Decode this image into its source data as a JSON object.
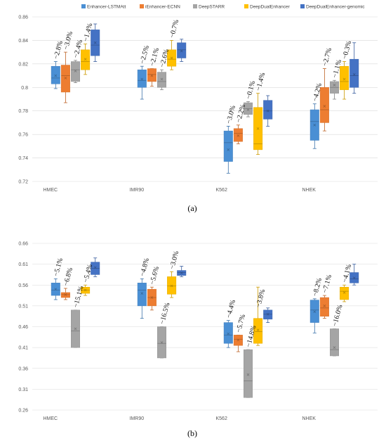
{
  "legend": [
    {
      "name": "Enhancer-LSTMAtt",
      "color": "#4a8fd4"
    },
    {
      "name": "iEnhancer-ECNN",
      "color": "#ed7d31"
    },
    {
      "name": "DeepSTARR",
      "color": "#a5a5a5"
    },
    {
      "name": "DeepDualEnhancer",
      "color": "#ffc000"
    },
    {
      "name": "DeepDualEnhancer-genomic",
      "color": "#4472c4"
    }
  ],
  "panels": [
    {
      "label": "(a)"
    },
    {
      "label": "(b)"
    }
  ],
  "chart_data": [
    {
      "type": "box",
      "title": "",
      "xlabel": "",
      "ylabel": "",
      "categories": [
        "HMEC",
        "IMR90",
        "K562",
        "NHEK"
      ],
      "ylim": [
        0.72,
        0.86
      ],
      "yticks": [
        "0.72",
        "0.74",
        "0.76",
        "0.78",
        "0.8",
        "0.82",
        "0.84",
        "0.86"
      ],
      "grid": true,
      "legend": "top",
      "series": [
        {
          "name": "Enhancer-LSTMAtt",
          "color": "#4a8fd4",
          "boxes": [
            {
              "min": 0.799,
              "q1": 0.803,
              "median": 0.808,
              "q3": 0.818,
              "max": 0.822,
              "mean": 0.81
            },
            {
              "min": 0.79,
              "q1": 0.8,
              "median": 0.806,
              "q3": 0.815,
              "max": 0.818,
              "mean": 0.807
            },
            {
              "min": 0.727,
              "q1": 0.737,
              "median": 0.753,
              "q3": 0.763,
              "max": 0.767,
              "mean": 0.747
            },
            {
              "min": 0.748,
              "q1": 0.755,
              "median": 0.771,
              "q3": 0.781,
              "max": 0.786,
              "mean": 0.768
            }
          ]
        },
        {
          "name": "iEnhancer-ECNN",
          "color": "#ed7d31",
          "boxes": [
            {
              "min": 0.787,
              "q1": 0.796,
              "median": 0.81,
              "q3": 0.819,
              "max": 0.83,
              "mean": 0.808
            },
            {
              "min": 0.801,
              "q1": 0.805,
              "median": 0.811,
              "q3": 0.816,
              "max": 0.816,
              "mean": 0.81
            },
            {
              "min": 0.752,
              "q1": 0.754,
              "median": 0.761,
              "q3": 0.765,
              "max": 0.768,
              "mean": 0.759
            },
            {
              "min": 0.763,
              "q1": 0.77,
              "median": 0.781,
              "q3": 0.8,
              "max": 0.816,
              "mean": 0.784
            }
          ]
        },
        {
          "name": "DeepSTARR",
          "color": "#a5a5a5",
          "boxes": [
            {
              "min": 0.804,
              "q1": 0.805,
              "median": 0.815,
              "q3": 0.822,
              "max": 0.823,
              "mean": 0.814
            },
            {
              "min": 0.798,
              "q1": 0.8,
              "median": 0.805,
              "q3": 0.813,
              "max": 0.815,
              "mean": 0.807
            },
            {
              "min": 0.775,
              "q1": 0.777,
              "median": 0.782,
              "q3": 0.787,
              "max": 0.788,
              "mean": 0.781
            },
            {
              "min": 0.79,
              "q1": 0.795,
              "median": 0.8,
              "q3": 0.805,
              "max": 0.806,
              "mean": 0.802
            }
          ]
        },
        {
          "name": "DeepDualEnhancer",
          "color": "#ffc000",
          "boxes": [
            {
              "min": 0.811,
              "q1": 0.815,
              "median": 0.822,
              "q3": 0.832,
              "max": 0.837,
              "mean": 0.824
            },
            {
              "min": 0.815,
              "q1": 0.818,
              "median": 0.824,
              "q3": 0.832,
              "max": 0.84,
              "mean": 0.825
            },
            {
              "min": 0.743,
              "q1": 0.747,
              "median": 0.752,
              "q3": 0.783,
              "max": 0.795,
              "mean": 0.765
            },
            {
              "min": 0.79,
              "q1": 0.798,
              "median": 0.805,
              "q3": 0.818,
              "max": 0.822,
              "mean": 0.807
            }
          ]
        },
        {
          "name": "DeepDualEnhancer-genomic",
          "color": "#4472c4",
          "boxes": [
            {
              "min": 0.822,
              "q1": 0.827,
              "median": 0.836,
              "q3": 0.849,
              "max": 0.854,
              "mean": 0.838
            },
            {
              "min": 0.822,
              "q1": 0.825,
              "median": 0.832,
              "q3": 0.838,
              "max": 0.841,
              "mean": 0.831
            },
            {
              "min": 0.767,
              "q1": 0.773,
              "median": 0.78,
              "q3": 0.789,
              "max": 0.793,
              "mean": 0.78
            },
            {
              "min": 0.795,
              "q1": 0.8,
              "median": 0.81,
              "q3": 0.824,
              "max": 0.838,
              "mean": 0.811
            }
          ]
        }
      ],
      "annotations": [
        {
          "category": "HMEC",
          "series": "Enhancer-LSTMAtt",
          "text": "−2.8%",
          "y": 0.822
        },
        {
          "category": "HMEC",
          "series": "iEnhancer-ECNN",
          "text": "−3.0%",
          "y": 0.83
        },
        {
          "category": "HMEC",
          "series": "DeepSTARR",
          "text": "−2.4%",
          "y": 0.823
        },
        {
          "category": "HMEC",
          "series": "DeepDualEnhancer",
          "text": "−1.4%",
          "y": 0.837
        },
        {
          "category": "IMR90",
          "series": "Enhancer-LSTMAtt",
          "text": "−2.5%",
          "y": 0.818
        },
        {
          "category": "IMR90",
          "series": "iEnhancer-ECNN",
          "text": "−2.1%",
          "y": 0.816
        },
        {
          "category": "IMR90",
          "series": "DeepSTARR",
          "text": "−2.6%",
          "y": 0.815
        },
        {
          "category": "IMR90",
          "series": "DeepDualEnhancer",
          "text": "−0.7%",
          "y": 0.84
        },
        {
          "category": "K562",
          "series": "Enhancer-LSTMAtt",
          "text": "−3.0%",
          "y": 0.767
        },
        {
          "category": "K562",
          "series": "iEnhancer-ECNN",
          "text": "−2.2%",
          "y": 0.768
        },
        {
          "category": "K562",
          "series": "DeepSTARR",
          "text": "−0.1%",
          "y": 0.788
        },
        {
          "category": "K562",
          "series": "DeepDualEnhancer",
          "text": "−1.4%",
          "y": 0.795
        },
        {
          "category": "NHEK",
          "series": "Enhancer-LSTMAtt",
          "text": "−4.2%",
          "y": 0.786
        },
        {
          "category": "NHEK",
          "series": "iEnhancer-ECNN",
          "text": "−2.7%",
          "y": 0.816
        },
        {
          "category": "NHEK",
          "series": "DeepSTARR",
          "text": "−1.1%",
          "y": 0.806
        },
        {
          "category": "NHEK",
          "series": "DeepDualEnhancer",
          "text": "−0.3%",
          "y": 0.822
        }
      ]
    },
    {
      "type": "box",
      "title": "",
      "xlabel": "",
      "ylabel": "",
      "categories": [
        "HMEC",
        "IMR90",
        "K562",
        "NHEK"
      ],
      "ylim": [
        0.26,
        0.66
      ],
      "yticks": [
        "0.26",
        "0.31",
        "0.36",
        "0.41",
        "0.46",
        "0.51",
        "0.56",
        "0.61",
        "0.66"
      ],
      "grid": true,
      "legend": "none",
      "series": [
        {
          "name": "Enhancer-LSTMAtt",
          "color": "#4a8fd4",
          "boxes": [
            {
              "min": 0.525,
              "q1": 0.535,
              "median": 0.548,
              "q3": 0.565,
              "max": 0.575,
              "mean": 0.55
            },
            {
              "min": 0.48,
              "q1": 0.51,
              "median": 0.548,
              "q3": 0.565,
              "max": 0.575,
              "mean": 0.54
            },
            {
              "min": 0.41,
              "q1": 0.42,
              "median": 0.44,
              "q3": 0.47,
              "max": 0.475,
              "mean": 0.443
            },
            {
              "min": 0.445,
              "q1": 0.47,
              "median": 0.5,
              "q3": 0.524,
              "max": 0.527,
              "mean": 0.496
            }
          ]
        },
        {
          "name": "iEnhancer-ECNN",
          "color": "#ed7d31",
          "boxes": [
            {
              "min": 0.525,
              "q1": 0.53,
              "median": 0.537,
              "q3": 0.542,
              "max": 0.552,
              "mean": 0.537
            },
            {
              "min": 0.5,
              "q1": 0.51,
              "median": 0.53,
              "q3": 0.55,
              "max": 0.555,
              "mean": 0.53
            },
            {
              "min": 0.4,
              "q1": 0.415,
              "median": 0.43,
              "q3": 0.44,
              "max": 0.44,
              "mean": 0.428
            },
            {
              "min": 0.48,
              "q1": 0.485,
              "median": 0.505,
              "q3": 0.53,
              "max": 0.535,
              "mean": 0.51
            }
          ]
        },
        {
          "name": "DeepSTARR",
          "color": "#a5a5a5",
          "boxes": [
            {
              "min": 0.41,
              "q1": 0.41,
              "median": 0.45,
              "q3": 0.5,
              "max": 0.5,
              "mean": 0.455
            },
            {
              "min": 0.385,
              "q1": 0.385,
              "median": 0.42,
              "q3": 0.46,
              "max": 0.46,
              "mean": 0.422
            },
            {
              "min": 0.29,
              "q1": 0.29,
              "median": 0.33,
              "q3": 0.405,
              "max": 0.405,
              "mean": 0.345
            },
            {
              "min": 0.39,
              "q1": 0.39,
              "median": 0.405,
              "q3": 0.455,
              "max": 0.455,
              "mean": 0.41
            }
          ]
        },
        {
          "name": "DeepDualEnhancer",
          "color": "#ffc000",
          "boxes": [
            {
              "min": 0.535,
              "q1": 0.54,
              "median": 0.548,
              "q3": 0.555,
              "max": 0.56,
              "mean": 0.548
            },
            {
              "min": 0.53,
              "q1": 0.538,
              "median": 0.558,
              "q3": 0.58,
              "max": 0.592,
              "mean": 0.558
            },
            {
              "min": 0.415,
              "q1": 0.42,
              "median": 0.448,
              "q3": 0.48,
              "max": 0.555,
              "mean": 0.452
            },
            {
              "min": 0.52,
              "q1": 0.525,
              "median": 0.545,
              "q3": 0.555,
              "max": 0.56,
              "mean": 0.542
            }
          ]
        },
        {
          "name": "DeepDualEnhancer-genomic",
          "color": "#4472c4",
          "boxes": [
            {
              "min": 0.58,
              "q1": 0.585,
              "median": 0.6,
              "q3": 0.615,
              "max": 0.625,
              "mean": 0.602
            },
            {
              "min": 0.58,
              "q1": 0.583,
              "median": 0.59,
              "q3": 0.595,
              "max": 0.605,
              "mean": 0.589
            },
            {
              "min": 0.47,
              "q1": 0.478,
              "median": 0.49,
              "q3": 0.5,
              "max": 0.505,
              "mean": 0.49
            },
            {
              "min": 0.56,
              "q1": 0.565,
              "median": 0.575,
              "q3": 0.59,
              "max": 0.61,
              "mean": 0.577
            }
          ]
        }
      ],
      "annotations": [
        {
          "category": "HMEC",
          "series": "Enhancer-LSTMAtt",
          "text": "−5.1%",
          "y": 0.575
        },
        {
          "category": "HMEC",
          "series": "iEnhancer-ECNN",
          "text": "−6.8%",
          "y": 0.552
        },
        {
          "category": "HMEC",
          "series": "DeepSTARR",
          "text": "−15.1%",
          "y": 0.5
        },
        {
          "category": "HMEC",
          "series": "DeepDualEnhancer",
          "text": "−5.4%",
          "y": 0.56
        },
        {
          "category": "IMR90",
          "series": "Enhancer-LSTMAtt",
          "text": "−4.8%",
          "y": 0.575
        },
        {
          "category": "IMR90",
          "series": "iEnhancer-ECNN",
          "text": "−5.6%",
          "y": 0.555
        },
        {
          "category": "IMR90",
          "series": "DeepSTARR",
          "text": "−16.5%",
          "y": 0.46
        },
        {
          "category": "IMR90",
          "series": "DeepDualEnhancer",
          "text": "−3.0%",
          "y": 0.592
        },
        {
          "category": "K562",
          "series": "Enhancer-LSTMAtt",
          "text": "−4.4%",
          "y": 0.475
        },
        {
          "category": "K562",
          "series": "iEnhancer-ECNN",
          "text": "−5.7%",
          "y": 0.44
        },
        {
          "category": "K562",
          "series": "DeepSTARR",
          "text": "−14.8%",
          "y": 0.405
        },
        {
          "category": "K562",
          "series": "DeepDualEnhancer",
          "text": "−3.8%",
          "y": 0.5
        },
        {
          "category": "NHEK",
          "series": "Enhancer-LSTMAtt",
          "text": "−8.2%",
          "y": 0.527
        },
        {
          "category": "NHEK",
          "series": "iEnhancer-ECNN",
          "text": "−7.1%",
          "y": 0.535
        },
        {
          "category": "NHEK",
          "series": "DeepSTARR",
          "text": "−16.0%",
          "y": 0.455
        },
        {
          "category": "NHEK",
          "series": "DeepDualEnhancer",
          "text": "−4.1%",
          "y": 0.56
        }
      ]
    }
  ]
}
